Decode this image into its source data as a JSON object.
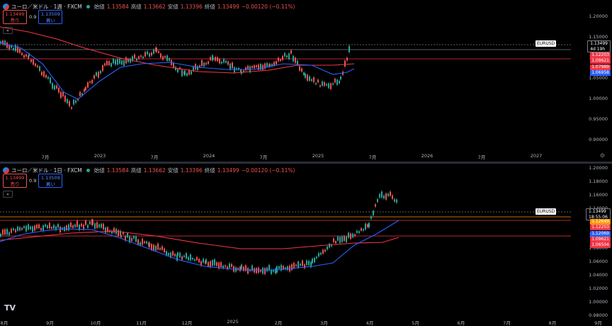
{
  "pane1": {
    "symbol": "ユーロ／米ドル · 1週 · FXCM",
    "open_label": "始値",
    "open": "1.13584",
    "high_label": "高値",
    "high": "1.13662",
    "low_label": "安値",
    "low": "1.13396",
    "close_label": "終値",
    "close": "1.13499",
    "change": "−0.00120 (−0.11%)",
    "sell_price": "1.13499",
    "sell_label": "売り",
    "buy_price": "1.13509",
    "buy_label": "買い",
    "spread": "0.9",
    "collapse": "«",
    "y_ticks": [
      "1.20000",
      "1.15000",
      "1.10000",
      "1.05000",
      "1.00000",
      "0.95000",
      "0.90000"
    ],
    "x_ticks": [
      "7月",
      "2023",
      "7月",
      "2024",
      "7月",
      "2025",
      "7月",
      "2026",
      "7月",
      "2027"
    ],
    "symbol_tag": "EURUSD",
    "current_price": "1.13499",
    "countdown": "4d 19h",
    "price_tags": [
      {
        "value": "1.12203",
        "color": "#f23645"
      },
      {
        "value": "1.09621",
        "color": "#f23645"
      },
      {
        "value": "1.07989",
        "color": "#f23645"
      },
      {
        "value": "1.06958",
        "color": "#2962ff"
      }
    ]
  },
  "pane2": {
    "symbol": "ユーロ／米ドル · 1日 · FXCM",
    "open_label": "始値",
    "open": "1.13584",
    "high_label": "高値",
    "high": "1.13662",
    "low_label": "安値",
    "low": "1.13396",
    "close_label": "終値",
    "close": "1.13499",
    "change": "−0.00120 (−0.11%)",
    "sell_price": "1.13499",
    "sell_label": "売り",
    "buy_price": "1.13509",
    "buy_label": "買い",
    "spread": "0.9",
    "collapse": "«",
    "y_ticks": [
      "1.20000",
      "1.18000",
      "1.16000",
      "1.14000",
      "1.12000",
      "1.10000",
      "1.08000",
      "1.06000",
      "1.04000",
      "1.02000",
      "1.00000",
      "0.98000"
    ],
    "x_ticks": [
      "8月",
      "9月",
      "10月",
      "11月",
      "12月",
      "2025",
      "2月",
      "3月",
      "4月",
      "5月",
      "6月",
      "7月",
      "8月",
      "9月"
    ],
    "symbol_tag": "EURUSD",
    "current_price": "1.13499",
    "countdown": "18:55:06",
    "price_tags": [
      {
        "value": "1.12649",
        "color": "#ff9800"
      },
      {
        "value": "1.12203",
        "color": "#f23645"
      },
      {
        "value": "1.12069",
        "color": "#2962ff"
      },
      {
        "value": "1.09621",
        "color": "#f23645"
      },
      {
        "value": "1.06504",
        "color": "#f23645"
      }
    ]
  },
  "logo": "TV",
  "gear_icon": "gear-icon",
  "colors": {
    "up": "#26a69a",
    "down": "#ef5350",
    "ma_fast": "#2962ff",
    "ma_slow": "#f23645"
  }
}
